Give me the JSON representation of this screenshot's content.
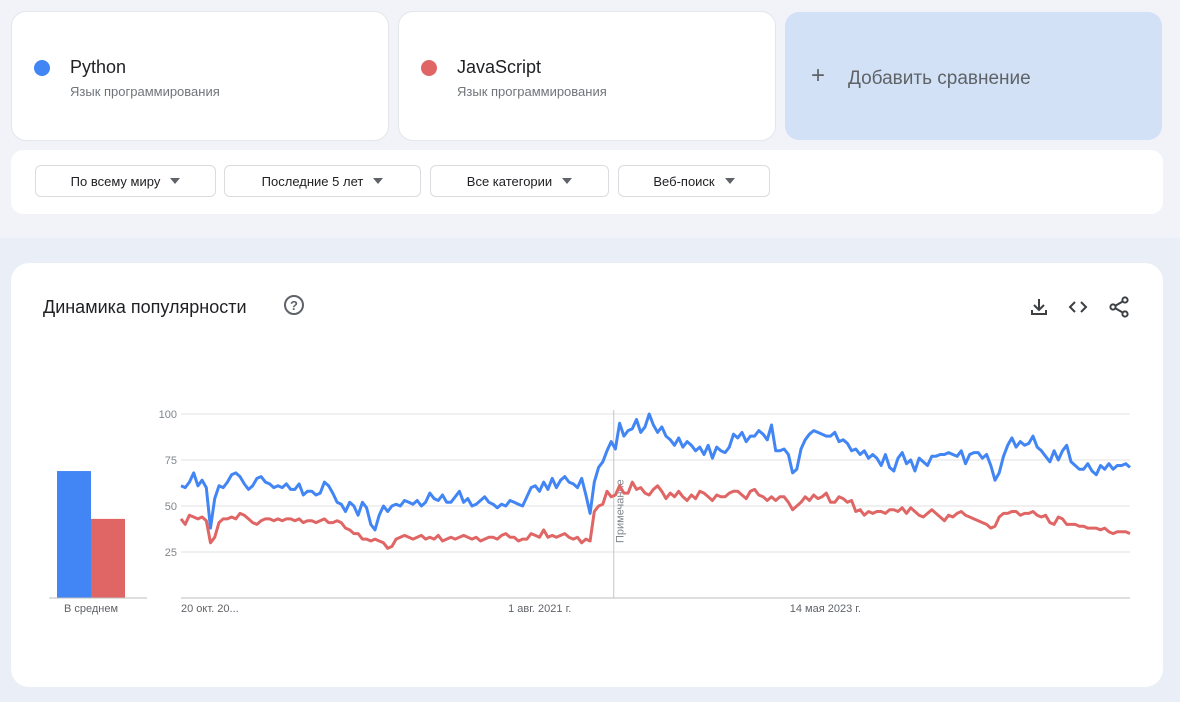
{
  "terms": [
    {
      "name": "Python",
      "category": "Язык программирования",
      "color": "#4285f4"
    },
    {
      "name": "JavaScript",
      "category": "Язык программирования",
      "color": "#e06666"
    }
  ],
  "add_comparison": {
    "icon": "plus-icon",
    "label": "Добавить сравнение"
  },
  "filters": [
    {
      "label": "По всему миру"
    },
    {
      "label": "Последние 5 лет"
    },
    {
      "label": "Все категории"
    },
    {
      "label": "Веб-поиск"
    }
  ],
  "card": {
    "title": "Динамика популярности",
    "help_icon": "help-circle-icon",
    "tools": [
      "download-icon",
      "embed-code-icon",
      "share-icon"
    ]
  },
  "chart_data": {
    "type": "line",
    "ylim": [
      0,
      100
    ],
    "yticks": [
      25,
      50,
      75,
      100
    ],
    "x_tick_labels": [
      "20 окт. 20...",
      "1 авг. 2021 г.",
      "14 мая 2023 г."
    ],
    "annotation": {
      "label": "Примечание",
      "position_fraction": 0.456
    },
    "average_bar": {
      "label": "В среднем",
      "values": [
        69,
        43
      ]
    },
    "series": [
      {
        "name": "Python",
        "color": "#4285f4",
        "values": [
          61,
          60,
          63,
          68,
          61,
          64,
          60,
          38,
          54,
          61,
          60,
          63,
          67,
          68,
          66,
          62,
          59,
          61,
          65,
          66,
          63,
          62,
          60,
          61,
          60,
          62,
          59,
          59,
          62,
          56,
          58,
          58,
          56,
          57,
          63,
          61,
          57,
          52,
          51,
          47,
          52,
          50,
          45,
          52,
          49,
          40,
          37,
          45,
          50,
          47,
          50,
          51,
          50,
          53,
          52,
          51,
          53,
          50,
          52,
          57,
          54,
          53,
          56,
          52,
          52,
          55,
          58,
          52,
          54,
          50,
          51,
          53,
          55,
          52,
          51,
          49,
          51,
          50,
          53,
          52,
          51,
          50,
          55,
          60,
          61,
          58,
          63,
          59,
          65,
          60,
          64,
          66,
          63,
          62,
          60,
          65,
          56,
          46,
          63,
          71,
          74,
          80,
          85,
          81,
          95,
          88,
          91,
          92,
          97,
          90,
          93,
          100,
          94,
          90,
          93,
          88,
          86,
          83,
          87,
          82,
          85,
          83,
          80,
          82,
          78,
          83,
          76,
          82,
          80,
          79,
          82,
          89,
          87,
          90,
          85,
          88,
          88,
          91,
          89,
          86,
          94,
          80,
          80,
          81,
          78,
          68,
          70,
          81,
          86,
          89,
          91,
          90,
          89,
          88,
          88,
          90,
          85,
          86,
          84,
          80,
          81,
          78,
          80,
          76,
          78,
          76,
          72,
          78,
          71,
          69,
          76,
          79,
          73,
          75,
          69,
          76,
          74,
          72,
          77,
          77,
          78,
          78,
          79,
          78,
          77,
          80,
          73,
          78,
          79,
          79,
          76,
          78,
          72,
          64,
          68,
          77,
          83,
          87,
          82,
          85,
          83,
          84,
          88,
          82,
          80,
          77,
          74,
          80,
          75,
          80,
          83,
          74,
          72,
          70,
          70,
          73,
          69,
          67,
          72,
          70,
          73,
          70,
          72,
          72,
          73,
          71
        ]
      },
      {
        "name": "JavaScript",
        "color": "#e06666",
        "values": [
          43,
          40,
          45,
          44,
          43,
          44,
          42,
          30,
          33,
          41,
          43,
          43,
          44,
          43,
          46,
          45,
          43,
          41,
          40,
          42,
          43,
          43,
          42,
          43,
          42,
          43,
          43,
          42,
          43,
          41,
          42,
          42,
          41,
          42,
          43,
          41,
          41,
          42,
          41,
          38,
          37,
          35,
          35,
          32,
          32,
          31,
          32,
          31,
          30,
          27,
          28,
          32,
          33,
          34,
          33,
          32,
          33,
          34,
          32,
          33,
          32,
          34,
          31,
          32,
          33,
          32,
          33,
          34,
          33,
          32,
          33,
          31,
          32,
          33,
          33,
          32,
          34,
          35,
          33,
          33,
          31,
          32,
          32,
          35,
          34,
          33,
          37,
          33,
          34,
          33,
          34,
          35,
          33,
          32,
          33,
          30,
          32,
          31,
          47,
          50,
          51,
          58,
          55,
          56,
          61,
          57,
          57,
          63,
          59,
          60,
          57,
          56,
          59,
          61,
          58,
          54,
          57,
          55,
          58,
          55,
          53,
          56,
          54,
          58,
          57,
          55,
          53,
          56,
          55,
          55,
          57,
          58,
          58,
          56,
          54,
          58,
          59,
          56,
          55,
          53,
          55,
          53,
          55,
          55,
          52,
          48,
          50,
          52,
          55,
          53,
          56,
          54,
          55,
          57,
          52,
          52,
          55,
          54,
          52,
          53,
          47,
          48,
          45,
          47,
          46,
          47,
          47,
          46,
          48,
          48,
          47,
          49,
          46,
          49,
          47,
          45,
          44,
          46,
          48,
          46,
          44,
          42,
          45,
          44,
          46,
          47,
          45,
          44,
          43,
          42,
          41,
          40,
          38,
          39,
          44,
          46,
          46,
          47,
          47,
          45,
          46,
          46,
          47,
          45,
          44,
          45,
          41,
          40,
          44,
          43,
          40,
          40,
          40,
          39,
          39,
          38,
          38,
          38,
          37,
          38,
          36,
          35,
          36,
          36,
          36,
          35
        ]
      }
    ]
  }
}
